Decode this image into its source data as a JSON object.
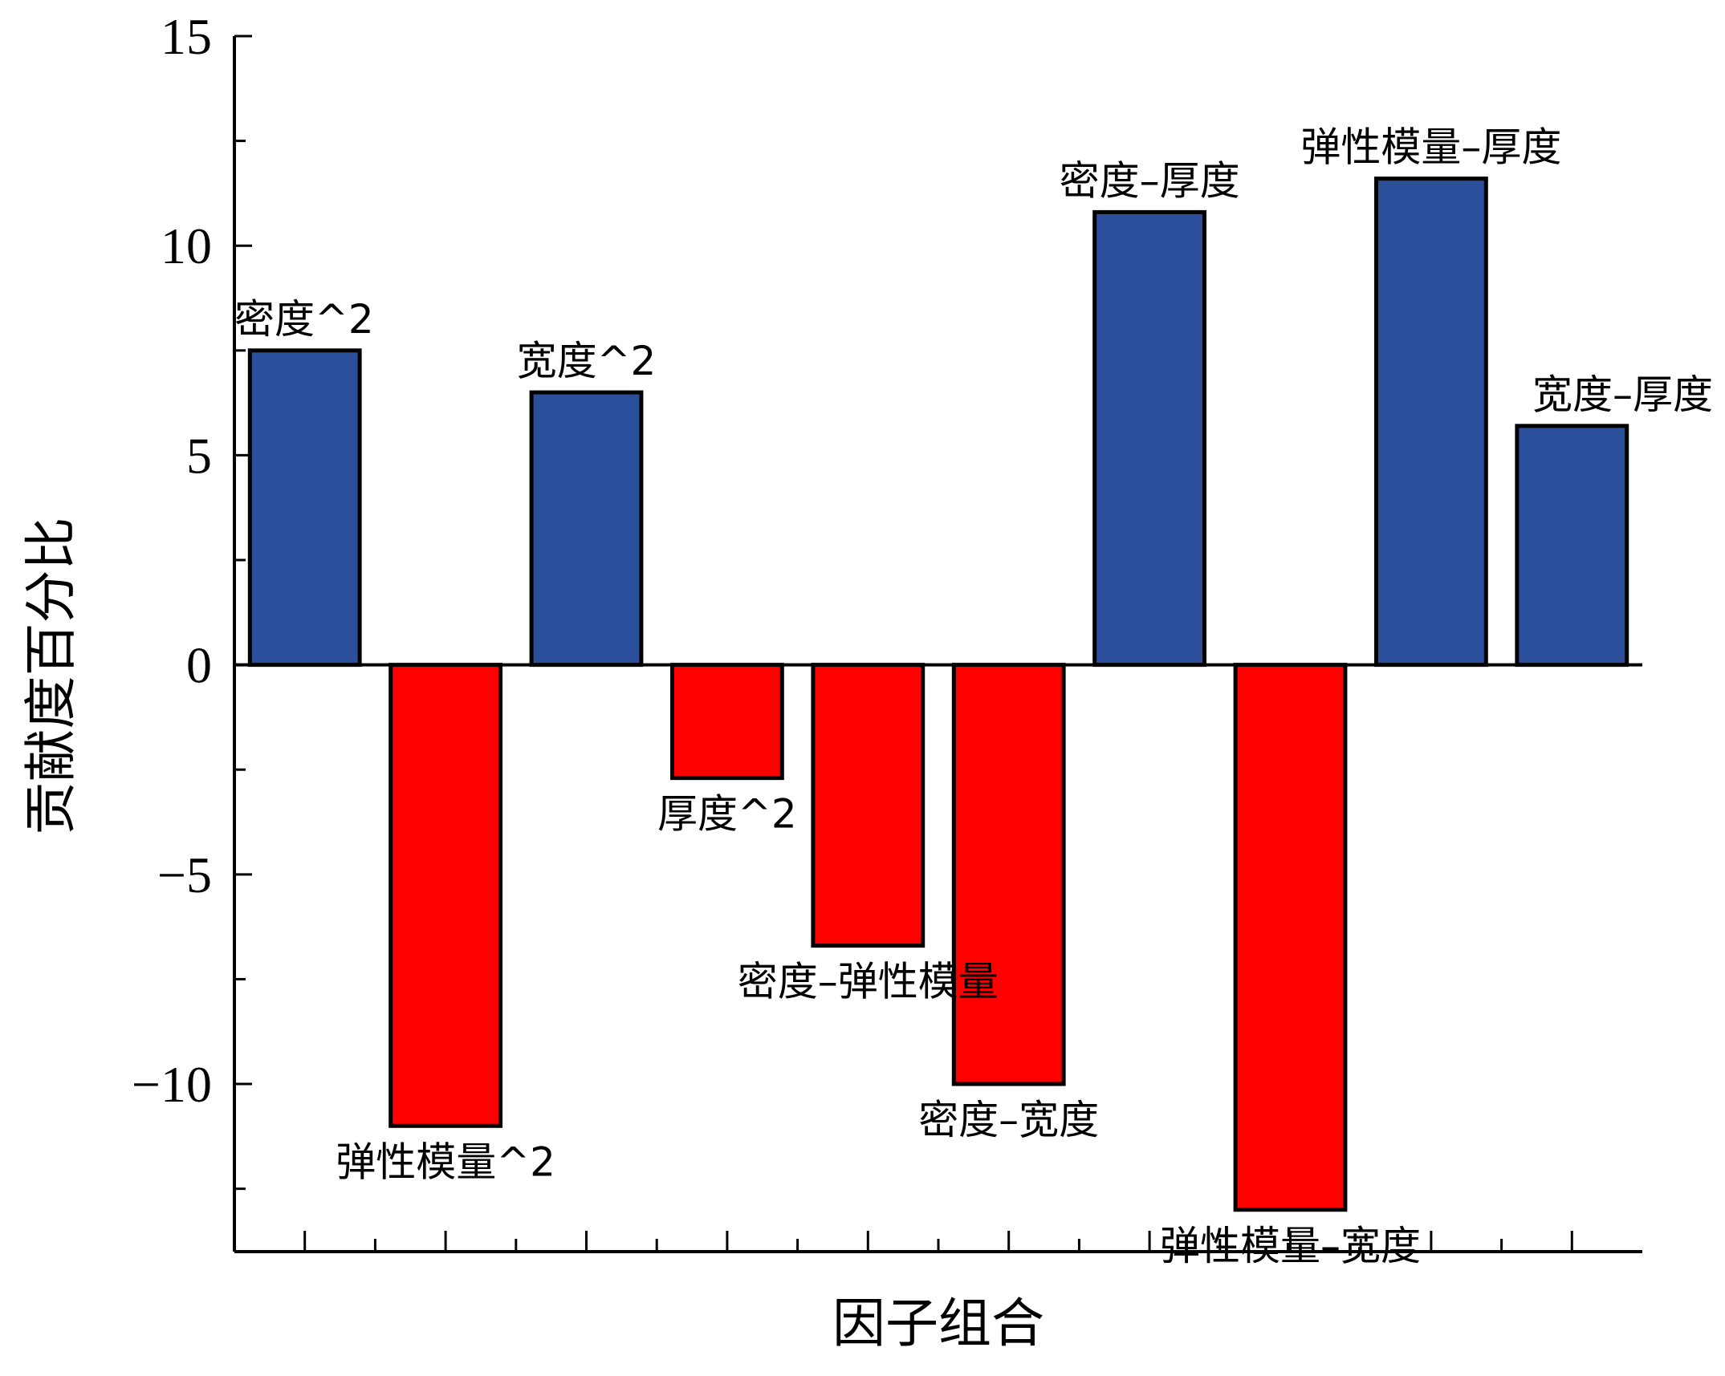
{
  "chart_data": {
    "type": "bar",
    "title": "",
    "xlabel": "因子组合",
    "ylabel": "贡献度百分比",
    "ylim": [
      -14,
      15
    ],
    "yticks": [
      15,
      10,
      5,
      0,
      -5,
      -10
    ],
    "ytick_labels": [
      "15",
      "10",
      "5",
      "0",
      "−5",
      "−10"
    ],
    "grid": false,
    "categories": [
      "密度^2",
      "弹性模量^2",
      "宽度^2",
      "厚度^2",
      "密度–弹性模量",
      "密度–宽度",
      "密度–厚度",
      "弹性模量–宽度",
      "弹性模量–厚度",
      "宽度–厚度"
    ],
    "values": [
      7.5,
      -11.0,
      6.5,
      -2.7,
      -6.7,
      -10.0,
      10.8,
      -13.0,
      11.6,
      5.7
    ],
    "colors": {
      "positive": "#2b4f9a",
      "negative": "#ff0000"
    }
  }
}
